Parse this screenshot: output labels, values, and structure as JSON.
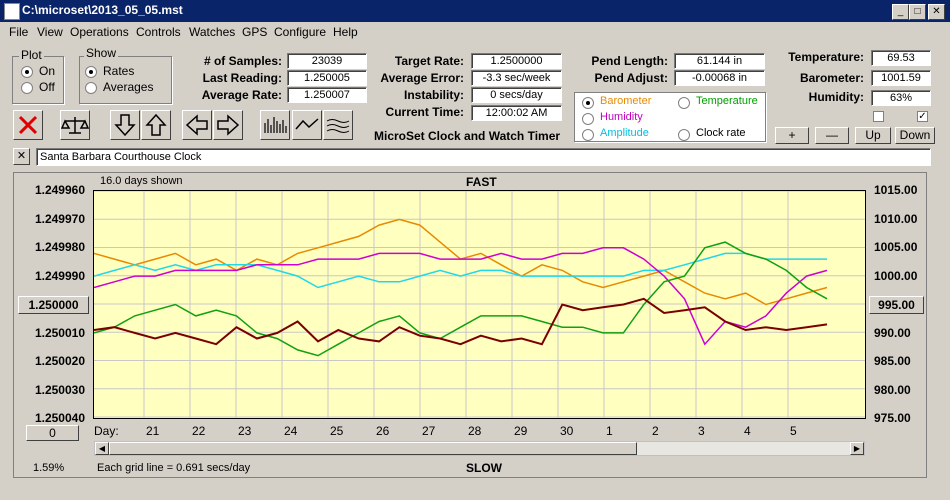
{
  "window": {
    "title": "C:\\microset\\2013_05_05.mst"
  },
  "menu": [
    "File",
    "View",
    "Operations",
    "Controls",
    "Watches",
    "GPS",
    "Configure",
    "Help"
  ],
  "plot_group": {
    "title": "Plot",
    "options": [
      "On",
      "Off"
    ],
    "selected": "On"
  },
  "show_group": {
    "title": "Show",
    "options": [
      "Rates",
      "Averages"
    ],
    "selected": "Rates"
  },
  "stats": {
    "samples_label": "# of Samples:",
    "samples": "23039",
    "last_label": "Last Reading:",
    "last": "1.250005",
    "avg_label": "Average Rate:",
    "avg": "1.250007",
    "target_label": "Target Rate:",
    "target": "1.2500000",
    "avg_err_label": "Average Error:",
    "avg_err": "-3.3 sec/week",
    "instab_label": "Instability:",
    "instab": "0 secs/day",
    "time_label": "Current Time:",
    "time": "12:00:02 AM",
    "pend_len_label": "Pend Length:",
    "pend_len": "61.144 in",
    "pend_adj_label": "Pend Adjust:",
    "pend_adj": "-0.00068 in",
    "temp_label": "Temperature:",
    "temp": "69.53",
    "baro_label": "Barometer:",
    "baro": "1001.59",
    "humid_label": "Humidity:",
    "humid": "63%"
  },
  "app_caption": "MicroSet Clock and Watch Timer",
  "sensor_options": [
    {
      "label": "Barometer",
      "color": "#e88a00",
      "selected": true
    },
    {
      "label": "Temperature",
      "color": "#00a000",
      "selected": false
    },
    {
      "label": "Humidity",
      "color": "#c000c0",
      "selected": false
    },
    {
      "label": "Clock rate",
      "color": "#000000",
      "selected": false
    },
    {
      "label": "Amplitude",
      "color": "#00c0e0",
      "selected": false
    }
  ],
  "scale_buttons": {
    "plus": "+",
    "minus": "—",
    "up": "Up",
    "down": "Down"
  },
  "clock_name": "Santa Barbara Courthouse Clock",
  "clear_glyph": "✕",
  "chart_data": {
    "type": "line",
    "top_label": "FAST",
    "bottom_label": "SLOW",
    "days_shown": "16.0 days shown",
    "grid_note": "Each grid line = 0.691 secs/day",
    "percent": "1.59%",
    "left_ref": "1.250000",
    "right_ref": "995.00",
    "zero_btn": "0",
    "day_prefix": "Day:",
    "days": [
      "21",
      "22",
      "23",
      "24",
      "25",
      "26",
      "27",
      "28",
      "29",
      "30",
      "1",
      "2",
      "3",
      "4",
      "5"
    ],
    "y_left_ticks": [
      "1.249960",
      "1.249970",
      "1.249980",
      "1.249990",
      "1.250000",
      "1.250010",
      "1.250020",
      "1.250030",
      "1.250040"
    ],
    "y_right_ticks": [
      "1015.00",
      "1010.00",
      "1005.00",
      "1000.00",
      "995.00",
      "990.00",
      "985.00",
      "980.00",
      "975.00"
    ],
    "y_left_range": [
      1.24996,
      1.25004
    ],
    "y_right_range": [
      975,
      1015
    ],
    "series": [
      {
        "name": "Barometer",
        "color": "#e88a00",
        "axis": "right",
        "values": [
          1004,
          1003,
          1002,
          1003,
          1004,
          1002,
          1003,
          1001,
          1003,
          1002,
          1004,
          1005,
          1006,
          1007,
          1009,
          1010,
          1009,
          1006,
          1003,
          1004,
          1002,
          1000,
          1002,
          1001,
          999,
          998,
          999,
          1000,
          1001,
          999,
          997,
          996,
          997,
          995,
          996,
          997,
          998
        ]
      },
      {
        "name": "Amplitude",
        "color": "#20d8e8",
        "axis": "right",
        "values": [
          1000,
          1001,
          1002,
          1001,
          1002,
          1001,
          1002,
          1002,
          1002,
          1001,
          1000,
          998,
          999,
          1000,
          999,
          999,
          1000,
          1001,
          1000,
          1001,
          1001,
          1000,
          1000,
          1000,
          1000,
          1000,
          1000,
          1001,
          1001,
          1002,
          1003,
          1004,
          1004,
          1003,
          1003,
          1003,
          1003
        ]
      },
      {
        "name": "Humidity",
        "color": "#d000d0",
        "axis": "right",
        "values": [
          998,
          999,
          1000,
          1000,
          1001,
          1001,
          1001,
          1001,
          1002,
          1002,
          1002,
          1003,
          1003,
          1003,
          1004,
          1004,
          1004,
          1003,
          1003,
          1003,
          1004,
          1003,
          1003,
          1004,
          1004,
          1005,
          1005,
          1003,
          1000,
          996,
          988,
          992,
          991,
          993,
          997,
          1000,
          1001
        ]
      },
      {
        "name": "Temperature",
        "color": "#10a010",
        "axis": "right",
        "values": [
          990,
          991,
          993,
          994,
          995,
          993,
          994,
          993,
          990,
          989,
          987,
          986,
          988,
          990,
          992,
          993,
          990,
          989,
          991,
          993,
          993,
          993,
          992,
          991,
          991,
          990,
          990,
          995,
          999,
          1000,
          1005,
          1006,
          1004,
          1003,
          1001,
          998,
          996
        ]
      },
      {
        "name": "Clock rate",
        "color": "#7a0000",
        "axis": "left",
        "values": [
          1.250009,
          1.250008,
          1.25001,
          1.250012,
          1.25001,
          1.250012,
          1.250014,
          1.250008,
          1.250012,
          1.25001,
          1.250006,
          1.250013,
          1.250009,
          1.250012,
          1.250013,
          1.250008,
          1.250011,
          1.250012,
          1.250014,
          1.250011,
          1.250013,
          1.250012,
          1.250014,
          1.25,
          1.250002,
          1.250001,
          1.25,
          1.249998,
          1.250003,
          1.250002,
          1.250001,
          1.250006,
          1.250009,
          1.250008,
          1.250009,
          1.250008,
          1.250007
        ]
      }
    ]
  }
}
